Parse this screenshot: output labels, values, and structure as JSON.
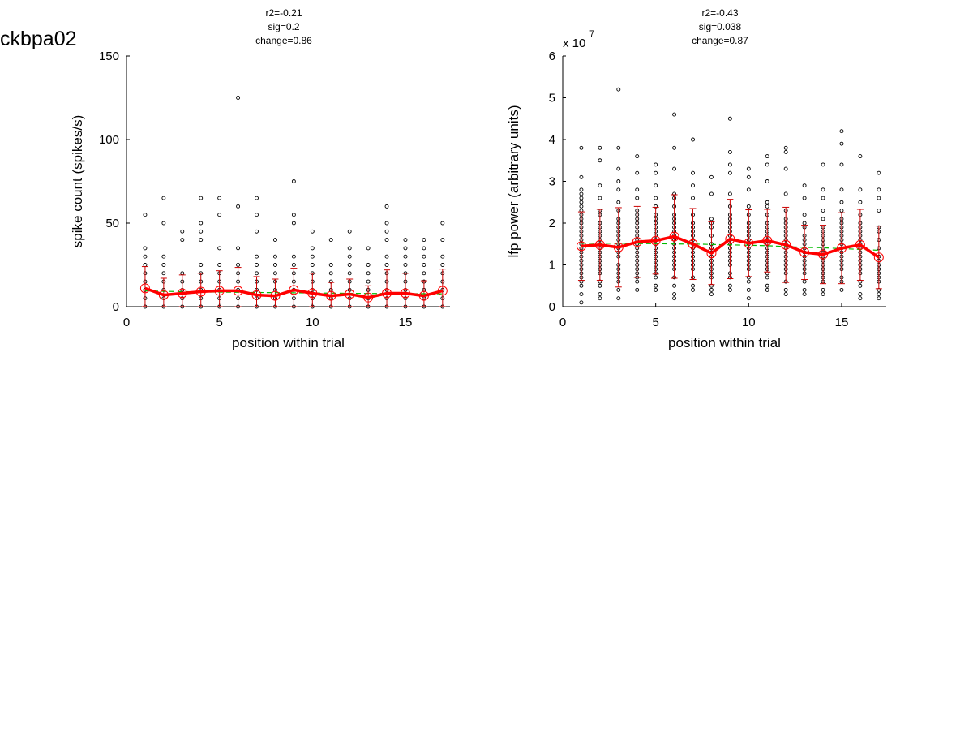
{
  "page_title": "ckbpa02",
  "chart_data": [
    {
      "type": "scatter",
      "annotation": [
        "r2=-0.21",
        "sig=0.2",
        "change=0.86"
      ],
      "xlabel": "position within trial",
      "ylabel": "spike count (spikes/s)",
      "xlim": [
        0,
        17.4
      ],
      "ylim": [
        0,
        150
      ],
      "xticks": [
        0,
        5,
        10,
        15
      ],
      "yticks": [
        0,
        50,
        100,
        150
      ],
      "ytick_labels": [
        "0",
        "50",
        "100",
        "150"
      ],
      "exponent_label": "",
      "positions": [
        1,
        2,
        3,
        4,
        5,
        6,
        7,
        8,
        9,
        10,
        11,
        12,
        13,
        14,
        15,
        16,
        17
      ],
      "points": [
        [
          0,
          5,
          10,
          15,
          20,
          25,
          30,
          35,
          55
        ],
        [
          0,
          5,
          10,
          15,
          20,
          25,
          30,
          50,
          65
        ],
        [
          0,
          5,
          10,
          15,
          20,
          40,
          45
        ],
        [
          0,
          5,
          10,
          15,
          20,
          25,
          40,
          45,
          50,
          65
        ],
        [
          0,
          5,
          10,
          15,
          20,
          25,
          35,
          55,
          65
        ],
        [
          0,
          5,
          10,
          15,
          20,
          25,
          35,
          60,
          125
        ],
        [
          0,
          5,
          10,
          15,
          20,
          25,
          30,
          45,
          55,
          65
        ],
        [
          0,
          5,
          10,
          15,
          20,
          25,
          30,
          40
        ],
        [
          0,
          5,
          10,
          15,
          20,
          25,
          30,
          50,
          55,
          75
        ],
        [
          0,
          5,
          10,
          15,
          20,
          25,
          30,
          35,
          45
        ],
        [
          0,
          5,
          10,
          15,
          20,
          25,
          40
        ],
        [
          0,
          5,
          10,
          15,
          20,
          25,
          30,
          35,
          45
        ],
        [
          0,
          5,
          10,
          15,
          20,
          25,
          35
        ],
        [
          0,
          5,
          10,
          15,
          20,
          25,
          30,
          40,
          45,
          50,
          60
        ],
        [
          0,
          5,
          10,
          15,
          20,
          25,
          30,
          35,
          40
        ],
        [
          0,
          5,
          10,
          15,
          20,
          25,
          30,
          35,
          40
        ],
        [
          0,
          5,
          10,
          15,
          20,
          25,
          30,
          40,
          50
        ]
      ],
      "mean": [
        11,
        7,
        8,
        9,
        9.5,
        9.5,
        7,
        6.5,
        10,
        8,
        6.5,
        7.5,
        5.5,
        8,
        8,
        6.5,
        9.5
      ],
      "err": [
        13,
        10,
        11,
        11,
        12,
        14,
        11,
        10,
        13,
        12,
        8,
        9,
        7,
        14,
        12,
        9,
        13
      ],
      "trend": [
        9.5,
        9.2,
        9,
        8.8,
        8.7,
        8.6,
        8.5,
        8.4,
        8.3,
        8.2,
        8.1,
        8,
        7.9,
        7.9,
        7.8,
        7.8,
        7.7
      ],
      "colors": {
        "points": "#000000",
        "mean": "#ff0000",
        "err": "#cc0000",
        "trend": "#00bb00"
      }
    },
    {
      "type": "scatter",
      "annotation": [
        "r2=-0.43",
        "sig=0.038",
        "change=0.87"
      ],
      "xlabel": "position within trial",
      "ylabel": "lfp power (arbitrary units)",
      "xlim": [
        0,
        17.4
      ],
      "ylim": [
        0,
        6
      ],
      "xticks": [
        0,
        5,
        10,
        15
      ],
      "yticks": [
        0,
        1,
        2,
        3,
        4,
        5,
        6
      ],
      "ytick_labels": [
        "0",
        "1",
        "2",
        "3",
        "4",
        "5",
        "6"
      ],
      "exponent_label": "x 10",
      "exponent_power": "7",
      "positions": [
        1,
        2,
        3,
        4,
        5,
        6,
        7,
        8,
        9,
        10,
        11,
        12,
        13,
        14,
        15,
        16,
        17
      ],
      "points": [
        [
          0.1,
          0.3,
          0.5,
          0.6,
          0.7,
          0.8,
          0.9,
          1.0,
          1.1,
          1.2,
          1.3,
          1.4,
          1.5,
          1.6,
          1.7,
          1.8,
          1.9,
          2.0,
          2.1,
          2.2,
          2.3,
          2.4,
          2.5,
          2.6,
          2.7,
          2.8,
          3.1,
          3.8
        ],
        [
          0.2,
          0.3,
          0.5,
          0.6,
          0.8,
          0.9,
          1.0,
          1.1,
          1.2,
          1.3,
          1.4,
          1.5,
          1.6,
          1.7,
          1.8,
          1.9,
          2.0,
          2.2,
          2.3,
          2.6,
          2.9,
          3.5,
          3.8
        ],
        [
          0.2,
          0.4,
          0.6,
          0.7,
          0.8,
          0.9,
          1.0,
          1.2,
          1.3,
          1.4,
          1.5,
          1.6,
          1.7,
          1.8,
          1.9,
          2.0,
          2.1,
          2.3,
          2.5,
          2.8,
          3.0,
          3.3,
          3.8,
          5.2
        ],
        [
          0.4,
          0.6,
          0.7,
          0.8,
          0.9,
          1.0,
          1.1,
          1.2,
          1.3,
          1.4,
          1.5,
          1.6,
          1.7,
          1.8,
          1.9,
          2.0,
          2.1,
          2.2,
          2.3,
          2.6,
          2.8,
          3.2,
          3.6
        ],
        [
          0.4,
          0.5,
          0.7,
          0.8,
          0.9,
          1.0,
          1.1,
          1.2,
          1.3,
          1.4,
          1.5,
          1.6,
          1.7,
          1.8,
          1.9,
          2.0,
          2.1,
          2.2,
          2.4,
          2.6,
          2.9,
          3.2,
          3.4
        ],
        [
          0.2,
          0.3,
          0.5,
          0.7,
          0.9,
          1.0,
          1.1,
          1.2,
          1.3,
          1.4,
          1.5,
          1.6,
          1.7,
          1.8,
          1.9,
          2.0,
          2.1,
          2.2,
          2.4,
          2.6,
          2.7,
          3.3,
          3.8,
          4.6
        ],
        [
          0.4,
          0.5,
          0.7,
          0.9,
          1.0,
          1.1,
          1.2,
          1.3,
          1.4,
          1.5,
          1.6,
          1.7,
          1.8,
          1.9,
          2.0,
          2.2,
          2.6,
          2.9,
          3.2,
          4.0
        ],
        [
          0.3,
          0.4,
          0.5,
          0.7,
          0.8,
          0.9,
          1.0,
          1.1,
          1.2,
          1.3,
          1.4,
          1.5,
          1.7,
          1.9,
          2.0,
          2.1,
          2.7,
          3.1
        ],
        [
          0.4,
          0.5,
          0.7,
          0.8,
          1.0,
          1.1,
          1.2,
          1.3,
          1.4,
          1.5,
          1.6,
          1.7,
          1.8,
          1.9,
          2.0,
          2.1,
          2.2,
          2.4,
          2.7,
          3.2,
          3.4,
          3.7,
          4.5
        ],
        [
          0.2,
          0.4,
          0.6,
          0.7,
          0.9,
          1.0,
          1.1,
          1.2,
          1.3,
          1.4,
          1.5,
          1.6,
          1.7,
          1.8,
          1.9,
          2.0,
          2.2,
          2.4,
          2.8,
          3.1,
          3.3
        ],
        [
          0.4,
          0.5,
          0.7,
          0.8,
          0.9,
          1.0,
          1.1,
          1.2,
          1.3,
          1.4,
          1.5,
          1.6,
          1.7,
          1.8,
          1.9,
          2.0,
          2.2,
          2.4,
          2.5,
          3.0,
          3.4,
          3.6
        ],
        [
          0.3,
          0.4,
          0.6,
          0.8,
          0.9,
          1.0,
          1.1,
          1.2,
          1.3,
          1.4,
          1.5,
          1.6,
          1.7,
          1.8,
          1.9,
          2.0,
          2.1,
          2.3,
          2.7,
          3.3,
          3.7,
          3.8
        ],
        [
          0.3,
          0.4,
          0.6,
          0.8,
          0.9,
          1.0,
          1.1,
          1.2,
          1.3,
          1.4,
          1.5,
          1.6,
          1.7,
          1.9,
          2.0,
          2.2,
          2.6,
          2.9
        ],
        [
          0.3,
          0.4,
          0.6,
          0.7,
          0.8,
          0.9,
          1.0,
          1.1,
          1.2,
          1.3,
          1.4,
          1.5,
          1.6,
          1.7,
          1.8,
          1.9,
          2.1,
          2.3,
          2.6,
          2.8,
          3.4
        ],
        [
          0.4,
          0.6,
          0.7,
          0.9,
          1.0,
          1.1,
          1.2,
          1.3,
          1.4,
          1.5,
          1.6,
          1.7,
          1.8,
          1.9,
          2.0,
          2.1,
          2.3,
          2.5,
          2.8,
          3.4,
          3.9,
          4.2
        ],
        [
          0.2,
          0.3,
          0.5,
          0.6,
          0.8,
          0.9,
          1.0,
          1.1,
          1.2,
          1.3,
          1.4,
          1.5,
          1.6,
          1.7,
          1.8,
          1.9,
          2.0,
          2.2,
          2.5,
          2.8,
          3.6
        ],
        [
          0.2,
          0.3,
          0.4,
          0.6,
          0.7,
          0.8,
          0.9,
          1.0,
          1.1,
          1.2,
          1.4,
          1.6,
          1.8,
          1.9,
          2.3,
          2.6,
          2.8,
          3.2
        ]
      ],
      "mean": [
        1.45,
        1.48,
        1.42,
        1.55,
        1.58,
        1.68,
        1.5,
        1.28,
        1.62,
        1.52,
        1.58,
        1.48,
        1.3,
        1.25,
        1.4,
        1.48,
        1.18
      ],
      "err": [
        0.82,
        0.85,
        0.95,
        0.85,
        0.8,
        1.0,
        0.85,
        0.75,
        0.95,
        0.8,
        0.75,
        0.9,
        0.65,
        0.7,
        0.85,
        0.85,
        0.75
      ],
      "trend": [
        1.52,
        1.52,
        1.52,
        1.51,
        1.51,
        1.5,
        1.5,
        1.49,
        1.48,
        1.47,
        1.46,
        1.44,
        1.42,
        1.41,
        1.39,
        1.37,
        1.35
      ],
      "colors": {
        "points": "#000000",
        "mean": "#ff0000",
        "err": "#cc0000",
        "trend": "#00bb00"
      }
    }
  ]
}
